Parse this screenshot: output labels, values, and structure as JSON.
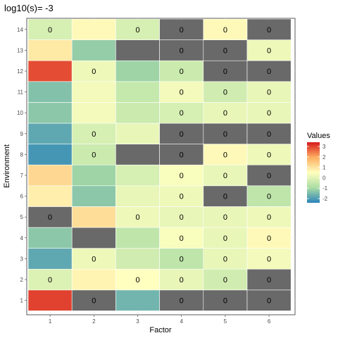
{
  "chart_data": {
    "type": "heatmap",
    "title": "log10(s)= -3",
    "xlabel": "Factor",
    "ylabel": "Environment",
    "x_categories": [
      "1",
      "2",
      "3",
      "4",
      "5",
      "6"
    ],
    "y_categories": [
      "1",
      "2",
      "3",
      "4",
      "5",
      "6",
      "7",
      "8",
      "9",
      "10",
      "11",
      "12",
      "13",
      "14"
    ],
    "na_color": "#696969",
    "legend": {
      "title": "Values",
      "breaks": [
        3,
        2,
        1,
        0,
        -1,
        -2
      ],
      "labels": [
        "3",
        "2",
        "1",
        "0",
        "-1",
        "-2"
      ],
      "range": [
        -2.4,
        3.4
      ],
      "colors": [
        "#2B83BA",
        "#ABDDA4",
        "#FFFFBF",
        "#FDAE61",
        "#D7191C"
      ]
    },
    "grid": true,
    "rows": [
      {
        "env": "1",
        "values": [
          3.0,
          null,
          -1.6,
          null,
          null,
          null
        ],
        "labels": [
          "",
          "0",
          "",
          "0",
          "0",
          "0"
        ]
      },
      {
        "env": "2",
        "values": [
          -0.1,
          0.7,
          0.5,
          0.1,
          -0.3,
          null
        ],
        "labels": [
          "0",
          "",
          "0",
          "0",
          "0",
          "0"
        ]
      },
      {
        "env": "3",
        "values": [
          -1.8,
          0.2,
          -0.3,
          -0.6,
          0.1,
          0.3
        ],
        "labels": [
          "",
          "0",
          "",
          "0",
          "0",
          "0"
        ]
      },
      {
        "env": "4",
        "values": [
          -1.3,
          null,
          -0.6,
          0.4,
          0.1,
          0.6
        ],
        "labels": [
          "",
          "",
          "",
          "0",
          "0",
          "0"
        ]
      },
      {
        "env": "5",
        "values": [
          null,
          1.1,
          0.2,
          0.1,
          0.1,
          0.2
        ],
        "labels": [
          "0",
          "",
          "0",
          "0",
          "0",
          "0"
        ]
      },
      {
        "env": "6",
        "values": [
          0.8,
          -1.3,
          0.1,
          0.2,
          null,
          -0.6
        ],
        "labels": [
          "",
          "",
          "",
          "0",
          "0",
          "0"
        ]
      },
      {
        "env": "7",
        "values": [
          1.2,
          -1.1,
          -0.2,
          0.4,
          0.1,
          null
        ],
        "labels": [
          "",
          "",
          "",
          "0",
          "0",
          "0"
        ]
      },
      {
        "env": "8",
        "values": [
          -2.1,
          -0.4,
          null,
          null,
          0.6,
          0.2
        ],
        "labels": [
          "",
          "0",
          "",
          "0",
          "0",
          "0"
        ]
      },
      {
        "env": "9",
        "values": [
          -1.8,
          -0.2,
          0.1,
          null,
          null,
          null
        ],
        "labels": [
          "",
          "0",
          "",
          "0",
          "0",
          "0"
        ]
      },
      {
        "env": "10",
        "values": [
          -1.3,
          0.3,
          -0.4,
          -0.2,
          0.1,
          0.1
        ],
        "labels": [
          "",
          "",
          "",
          "0",
          "0",
          "0"
        ]
      },
      {
        "env": "11",
        "values": [
          -1.4,
          0.3,
          -0.5,
          0.3,
          -0.3,
          0.1
        ],
        "labels": [
          "",
          "",
          "",
          "0",
          "0",
          "0"
        ]
      },
      {
        "env": "12",
        "values": [
          2.9,
          0.2,
          -1.1,
          -0.4,
          null,
          null
        ],
        "labels": [
          "",
          "0",
          "",
          "0",
          "0",
          "0"
        ]
      },
      {
        "env": "13",
        "values": [
          0.9,
          -1.2,
          null,
          null,
          null,
          0.2
        ],
        "labels": [
          "",
          "",
          "",
          "0",
          "0",
          "0"
        ]
      },
      {
        "env": "14",
        "values": [
          -0.2,
          0.6,
          -0.2,
          null,
          0.6,
          null
        ],
        "labels": [
          "0",
          "",
          "0",
          "0",
          "0",
          "0"
        ]
      }
    ]
  }
}
